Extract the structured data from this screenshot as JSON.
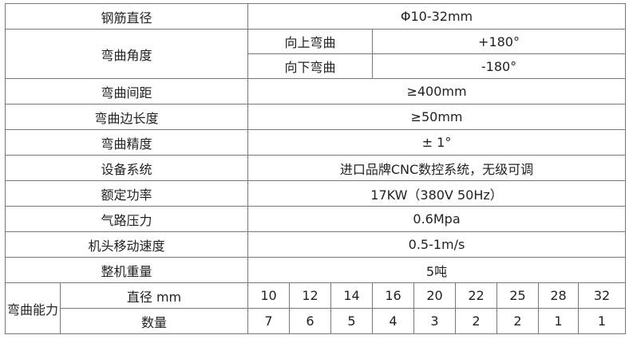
{
  "rows": {
    "diameter": {
      "label": "钢筋直径",
      "value": "Φ10-32mm"
    },
    "angle": {
      "label": "弯曲角度",
      "up_label": "向上弯曲",
      "up_value": "+180°",
      "down_label": "向下弯曲",
      "down_value": "-180°"
    },
    "spacing": {
      "label": "弯曲间距",
      "value": "≥400mm"
    },
    "edge": {
      "label": "弯曲边长度",
      "value": "≥50mm"
    },
    "precision": {
      "label": "弯曲精度",
      "value": "± 1°"
    },
    "system": {
      "label": "设备系统",
      "value": "进口品牌CNC数控系统，无级可调"
    },
    "power": {
      "label": "额定功率",
      "value": "17KW（380V 50Hz）"
    },
    "air": {
      "label": "气路压力",
      "value": "0.6Mpa"
    },
    "speed": {
      "label": "机头移动速度",
      "value": "0.5-1m/s"
    },
    "weight": {
      "label": "整机重量",
      "value": "5吨"
    }
  },
  "capacity": {
    "label": "弯曲能力",
    "diameter_label": "直径 mm",
    "count_label": "数量",
    "diameters": [
      "10",
      "12",
      "14",
      "16",
      "20",
      "22",
      "25",
      "28",
      "32"
    ],
    "counts": [
      "7",
      "6",
      "5",
      "4",
      "3",
      "2",
      "2",
      "1",
      "1"
    ]
  }
}
